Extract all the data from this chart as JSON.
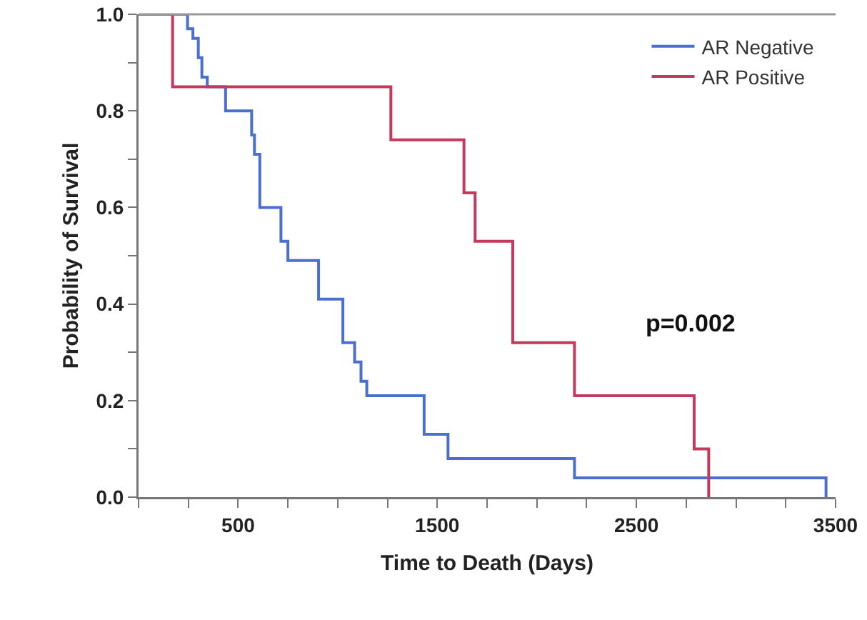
{
  "chart_data": {
    "type": "step",
    "xlabel": "Time to Death (Days)",
    "ylabel": "Probability of Survival",
    "series": [
      {
        "name": "AR Negative",
        "color": "#4a6fcf",
        "x": [
          0,
          246,
          273,
          300,
          318,
          345,
          437,
          568,
          582,
          609,
          715,
          750,
          904,
          1026,
          1085,
          1117,
          1146,
          1434,
          1554,
          2189,
          3452
        ],
        "values": [
          1,
          0.97,
          0.95,
          0.91,
          0.87,
          0.85,
          0.8,
          0.75,
          0.71,
          0.6,
          0.53,
          0.49,
          0.41,
          0.32,
          0.28,
          0.24,
          0.21,
          0.13,
          0.08,
          0.04,
          0
        ]
      },
      {
        "name": "AR Positive",
        "color": "#c23b5c",
        "x": [
          0,
          171,
          1267,
          1634,
          1690,
          1879,
          2189,
          2790,
          2863
        ],
        "values": [
          1,
          0.85,
          0.74,
          0.63,
          0.53,
          0.32,
          0.21,
          0.1,
          0
        ]
      }
    ],
    "xlim": [
      0,
      3500
    ],
    "xticks": [
      {
        "value": 0,
        "label": null
      },
      {
        "value": 250,
        "label": null
      },
      500,
      {
        "value": 750,
        "label": null
      },
      {
        "value": 1000,
        "label": null
      },
      {
        "value": 1250,
        "label": null
      },
      1500,
      {
        "value": 1750,
        "label": null
      },
      {
        "value": 2000,
        "label": null
      },
      {
        "value": 2250,
        "label": null
      },
      2500,
      {
        "value": 2750,
        "label": null
      },
      {
        "value": 3000,
        "label": null
      },
      {
        "value": 3250,
        "label": null
      },
      3500
    ],
    "ylim": [
      0,
      1
    ],
    "yticks": [
      {
        "value": 0,
        "label": "0.0"
      },
      {
        "value": 0.1,
        "label": null
      },
      {
        "value": 0.2,
        "label": "0.2"
      },
      {
        "value": 0.3,
        "label": null
      },
      {
        "value": 0.4,
        "label": "0.4"
      },
      {
        "value": 0.5,
        "label": null
      },
      {
        "value": 0.6,
        "label": "0.6"
      },
      {
        "value": 0.7,
        "label": null
      },
      {
        "value": 0.8,
        "label": "0.8"
      },
      {
        "value": 0.9,
        "label": null
      },
      {
        "value": 1,
        "label": "1.0"
      }
    ],
    "grid": false,
    "legend": "top right",
    "line_style": "solid",
    "marker": "none",
    "annotations": [
      "p=0.002"
    ]
  }
}
